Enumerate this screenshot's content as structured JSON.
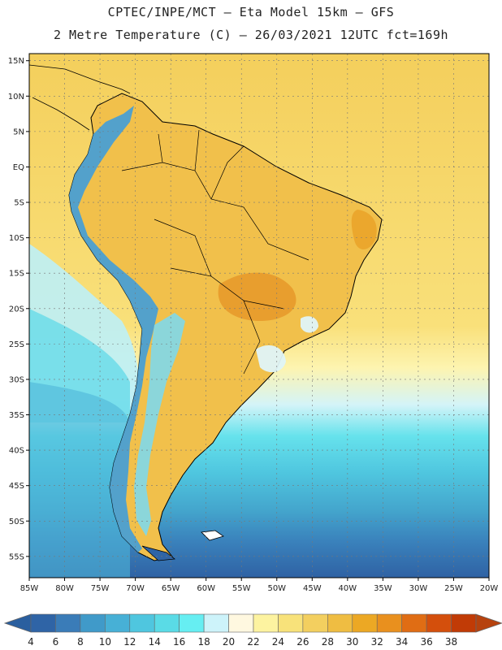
{
  "header": {
    "line1": "CPTEC/INPE/MCT –  Eta Model 15km – GFS",
    "line2": "2 Metre Temperature (C) – 26/03/2021 12UTC fct=169h"
  },
  "map": {
    "lon_range": [
      -85,
      -20
    ],
    "lat_range": [
      -58,
      16
    ],
    "lat_ticks": [
      {
        "value": 15,
        "label": "15N"
      },
      {
        "value": 10,
        "label": "10N"
      },
      {
        "value": 5,
        "label": "5N"
      },
      {
        "value": 0,
        "label": "EQ"
      },
      {
        "value": -5,
        "label": "5S"
      },
      {
        "value": -10,
        "label": "10S"
      },
      {
        "value": -15,
        "label": "15S"
      },
      {
        "value": -20,
        "label": "20S"
      },
      {
        "value": -25,
        "label": "25S"
      },
      {
        "value": -30,
        "label": "30S"
      },
      {
        "value": -35,
        "label": "35S"
      },
      {
        "value": -40,
        "label": "40S"
      },
      {
        "value": -45,
        "label": "45S"
      },
      {
        "value": -50,
        "label": "50S"
      },
      {
        "value": -55,
        "label": "55S"
      }
    ],
    "lon_ticks": [
      {
        "value": -85,
        "label": "85W"
      },
      {
        "value": -80,
        "label": "80W"
      },
      {
        "value": -75,
        "label": "75W"
      },
      {
        "value": -70,
        "label": "70W"
      },
      {
        "value": -65,
        "label": "65W"
      },
      {
        "value": -60,
        "label": "60W"
      },
      {
        "value": -55,
        "label": "55W"
      },
      {
        "value": -50,
        "label": "50W"
      },
      {
        "value": -45,
        "label": "45W"
      },
      {
        "value": -40,
        "label": "40W"
      },
      {
        "value": -35,
        "label": "35W"
      },
      {
        "value": -30,
        "label": "30W"
      },
      {
        "value": -25,
        "label": "25W"
      },
      {
        "value": -20,
        "label": "20W"
      }
    ]
  },
  "colorbar": {
    "labels": [
      "4",
      "6",
      "8",
      "10",
      "12",
      "14",
      "16",
      "18",
      "20",
      "22",
      "24",
      "26",
      "28",
      "30",
      "32",
      "34",
      "36",
      "38"
    ],
    "colors": [
      "#2f64a6",
      "#3a7cb8",
      "#409ac9",
      "#47b0d6",
      "#4fc6df",
      "#5adbe6",
      "#66eef2",
      "#cdf3fa",
      "#fff8e0",
      "#fdf3a0",
      "#f8e27a",
      "#f3cf5f",
      "#efbd42",
      "#eca824",
      "#e9901e",
      "#e06d14",
      "#d44f0c",
      "#c13b06"
    ],
    "low_color": "#2a5f9f",
    "high_color": "#b6420e"
  }
}
